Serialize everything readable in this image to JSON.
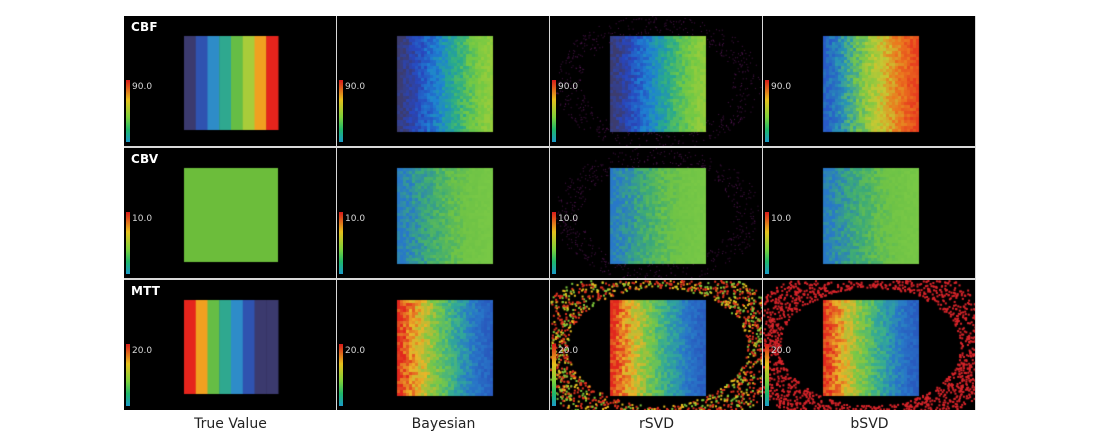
{
  "figure": {
    "columns": [
      "True Value",
      "Bayesian",
      "rSVD",
      "bSVD"
    ],
    "rows": [
      {
        "key": "cbf",
        "label": "CBF",
        "scale_max": "90.0"
      },
      {
        "key": "cbv",
        "label": "CBV",
        "scale_max": "10.0"
      },
      {
        "key": "mtt",
        "label": "MTT",
        "scale_max": "20.0"
      }
    ],
    "colormap": [
      "#d81a1a",
      "#e6c01c",
      "#7ed13a",
      "#20b86a",
      "#1a9ac8",
      "#2a3a9a"
    ]
  }
}
